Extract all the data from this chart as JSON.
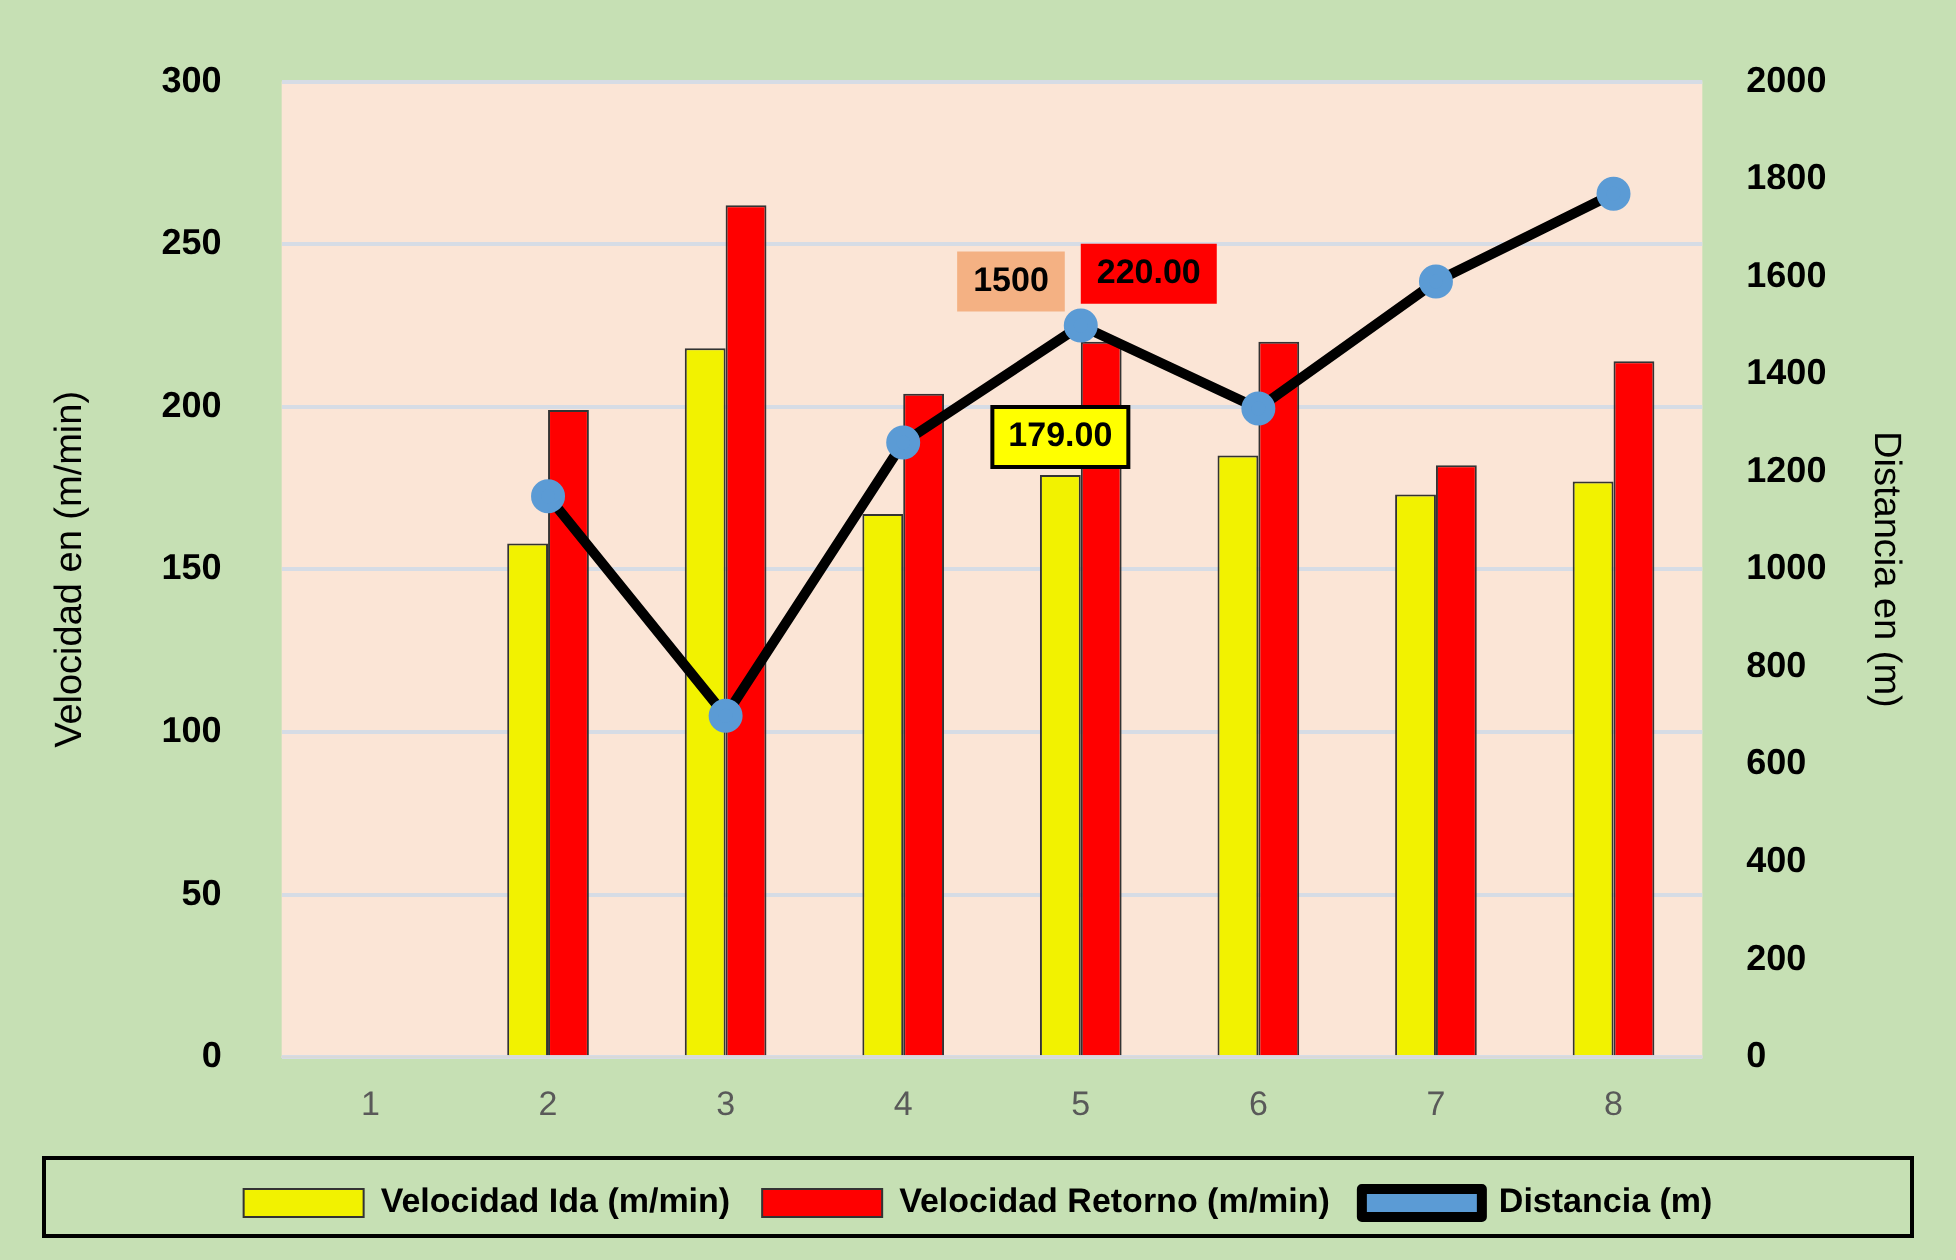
{
  "chart_data": {
    "type": "bar",
    "ylabel": "Velocidad en (m/min)",
    "y2label": "Distancia en (m)",
    "categories": [
      "1",
      "2",
      "3",
      "4",
      "5",
      "6",
      "7",
      "8"
    ],
    "series": [
      {
        "name": "Velocidad Ida (m/min)",
        "color": "#f2f200",
        "values": [
          null,
          158,
          218,
          167,
          179,
          185,
          173,
          177
        ],
        "value_labels": [
          null,
          null,
          null,
          null,
          "179.00",
          null,
          null,
          null
        ]
      },
      {
        "name": "Velocidad Retorno (m/min)",
        "color": "#ff0000",
        "values": [
          null,
          199,
          262,
          204,
          220,
          220,
          182,
          214
        ],
        "value_labels": [
          null,
          null,
          null,
          null,
          "220.00",
          null,
          null,
          null
        ]
      },
      {
        "name": "Distancia (m)",
        "type": "line",
        "axis": "y2",
        "color": "#000000",
        "marker": "circle",
        "values": [
          null,
          1150,
          700,
          1260,
          1500,
          1330,
          1590,
          1770
        ],
        "value_labels": [
          null,
          null,
          null,
          null,
          "1500",
          null,
          null,
          null
        ]
      }
    ],
    "ylim": [
      0,
      300
    ],
    "yticks": [
      0,
      50,
      100,
      150,
      200,
      250,
      300
    ],
    "y2lim": [
      0,
      2000
    ],
    "y2ticks": [
      0,
      200,
      400,
      600,
      800,
      1000,
      1200,
      1400,
      1600,
      1800,
      2000
    ],
    "grid": "y",
    "legend": "bottom"
  }
}
